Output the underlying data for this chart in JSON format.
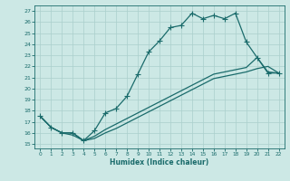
{
  "xlabel": "Humidex (Indice chaleur)",
  "bg_color": "#cce8e5",
  "grid_color": "#aacfcc",
  "line_color": "#1a6b6b",
  "xlim": [
    -0.5,
    22.5
  ],
  "ylim": [
    14.6,
    27.5
  ],
  "xticks": [
    0,
    1,
    2,
    3,
    4,
    5,
    6,
    7,
    8,
    9,
    10,
    11,
    12,
    13,
    14,
    15,
    16,
    17,
    18,
    19,
    20,
    21,
    22
  ],
  "yticks": [
    15,
    16,
    17,
    18,
    19,
    20,
    21,
    22,
    23,
    24,
    25,
    26,
    27
  ],
  "line1_x": [
    0,
    1,
    2,
    3,
    4,
    5,
    6,
    7,
    8,
    9,
    10,
    11,
    12,
    13,
    14,
    15,
    16,
    17,
    18,
    19,
    20,
    21,
    22
  ],
  "line1_y": [
    17.5,
    16.5,
    16.0,
    16.0,
    15.3,
    16.2,
    17.8,
    18.2,
    19.3,
    21.3,
    23.3,
    24.3,
    25.5,
    25.7,
    26.8,
    26.3,
    26.6,
    26.3,
    26.8,
    24.2,
    22.8,
    21.4,
    21.4
  ],
  "line2_x": [
    0,
    1,
    2,
    3,
    4,
    5,
    6,
    7,
    8,
    9,
    10,
    11,
    12,
    13,
    14,
    15,
    16,
    17,
    18,
    19,
    20,
    21,
    22
  ],
  "line2_y": [
    17.5,
    16.5,
    16.0,
    16.0,
    15.3,
    15.7,
    16.3,
    16.8,
    17.3,
    17.8,
    18.3,
    18.8,
    19.3,
    19.8,
    20.3,
    20.8,
    21.3,
    21.5,
    21.7,
    21.9,
    22.8,
    21.5,
    21.4
  ],
  "line3_x": [
    0,
    1,
    2,
    3,
    4,
    5,
    6,
    7,
    8,
    9,
    10,
    11,
    12,
    13,
    14,
    15,
    16,
    17,
    18,
    19,
    20,
    21,
    22
  ],
  "line3_y": [
    17.5,
    16.5,
    16.0,
    15.8,
    15.3,
    15.5,
    16.0,
    16.4,
    16.9,
    17.4,
    17.9,
    18.4,
    18.9,
    19.4,
    19.9,
    20.4,
    20.9,
    21.1,
    21.3,
    21.5,
    21.8,
    22.0,
    21.4
  ]
}
